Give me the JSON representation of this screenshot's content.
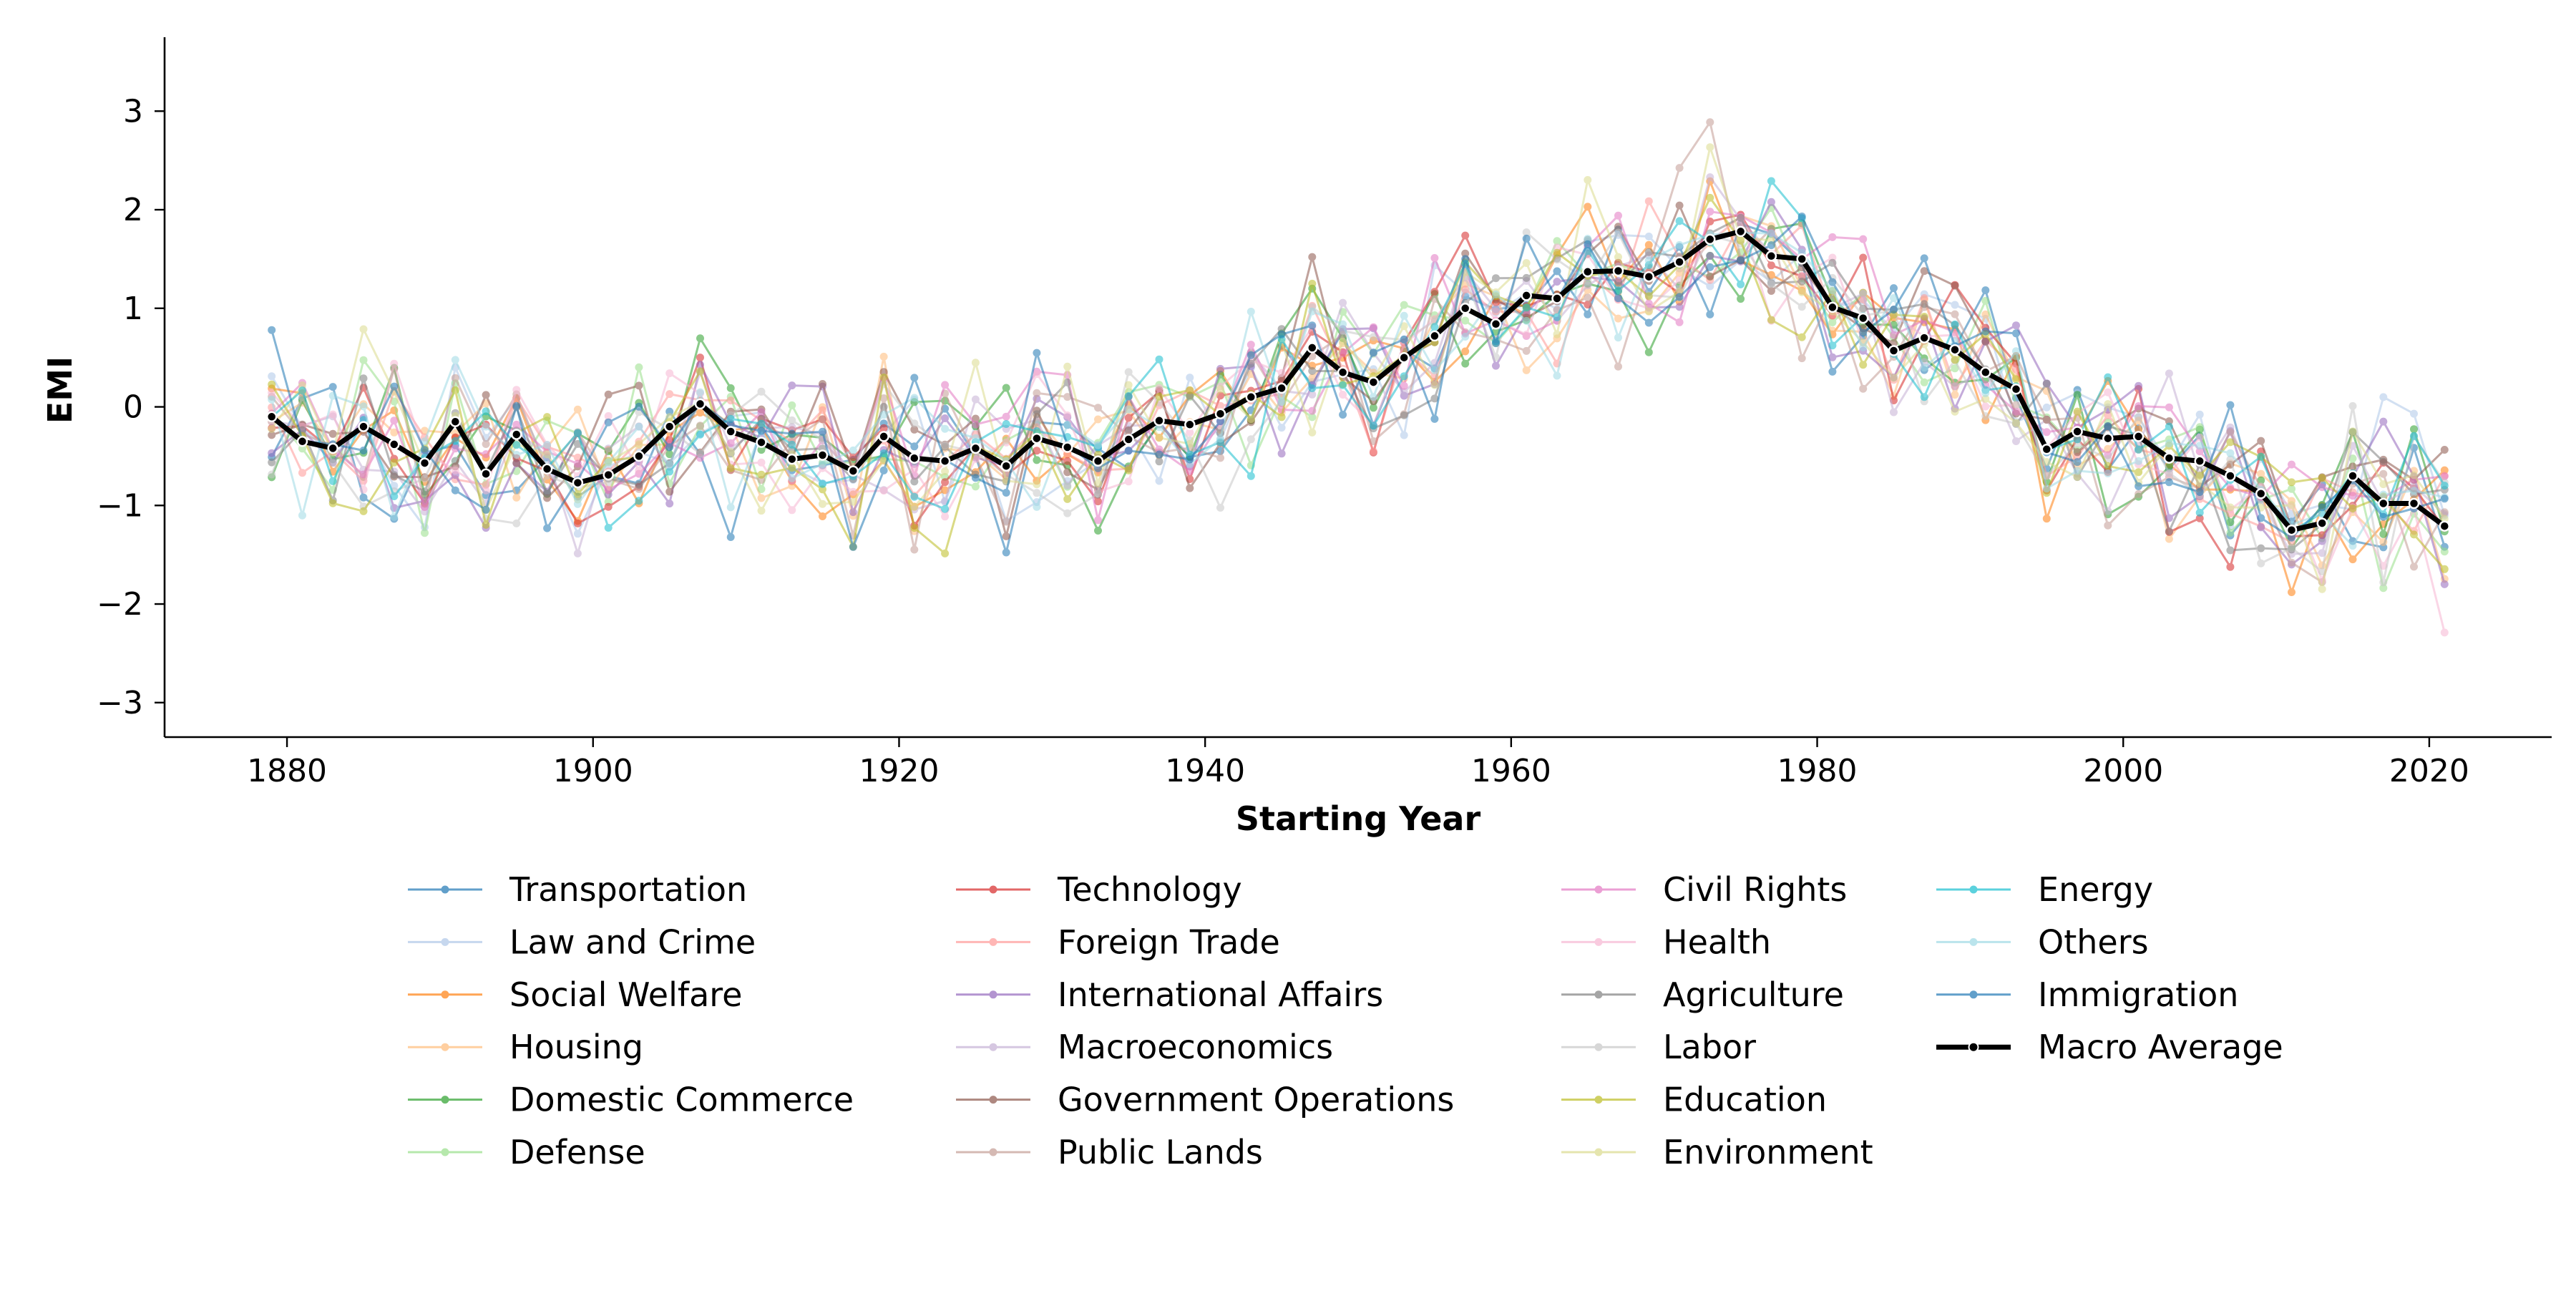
{
  "chart_data": {
    "type": "line",
    "title": "",
    "xlabel": "Starting Year",
    "ylabel": "EMI",
    "xlim": [
      1872,
      2028
    ],
    "ylim": [
      -3.35,
      3.75
    ],
    "xticks": [
      1880,
      1900,
      1920,
      1940,
      1960,
      1980,
      2000,
      2020
    ],
    "yticks": [
      3,
      2,
      1,
      0,
      -1,
      -2,
      -3
    ],
    "ytick_labels": [
      "3",
      "2",
      "1",
      "0",
      "−1",
      "−2",
      "−3"
    ],
    "grid": false,
    "legend_position": "bottom",
    "x": [
      1879,
      1881,
      1883,
      1885,
      1887,
      1889,
      1891,
      1893,
      1895,
      1897,
      1899,
      1901,
      1903,
      1905,
      1907,
      1909,
      1911,
      1913,
      1915,
      1917,
      1919,
      1921,
      1923,
      1925,
      1927,
      1929,
      1931,
      1933,
      1935,
      1937,
      1939,
      1941,
      1943,
      1945,
      1947,
      1949,
      1951,
      1953,
      1955,
      1957,
      1959,
      1961,
      1963,
      1965,
      1967,
      1969,
      1971,
      1973,
      1975,
      1977,
      1979,
      1981,
      1983,
      1985,
      1987,
      1989,
      1991,
      1993,
      1995,
      1997,
      1999,
      2001,
      2003,
      2005,
      2007,
      2009,
      2011,
      2013,
      2015,
      2017,
      2019,
      2021
    ],
    "macro_average": [
      -0.1,
      -0.35,
      -0.42,
      -0.2,
      -0.38,
      -0.57,
      -0.15,
      -0.68,
      -0.28,
      -0.63,
      -0.77,
      -0.69,
      -0.5,
      -0.2,
      0.03,
      -0.25,
      -0.36,
      -0.53,
      -0.49,
      -0.65,
      -0.3,
      -0.52,
      -0.55,
      -0.42,
      -0.6,
      -0.32,
      -0.41,
      -0.55,
      -0.33,
      -0.14,
      -0.18,
      -0.07,
      0.1,
      0.19,
      0.6,
      0.35,
      0.25,
      0.5,
      0.72,
      1.0,
      0.84,
      1.13,
      1.1,
      1.37,
      1.38,
      1.32,
      1.47,
      1.7,
      1.78,
      1.53,
      1.5,
      1.01,
      0.9,
      0.57,
      0.7,
      0.58,
      0.35,
      0.18,
      -0.43,
      -0.25,
      -0.32,
      -0.3,
      -0.52,
      -0.55,
      -0.7,
      -0.88,
      -1.25,
      -1.18,
      -0.7,
      -0.98,
      -0.98,
      -1.21
    ],
    "series": [
      {
        "name": "Transportation",
        "color": "#1f77b4"
      },
      {
        "name": "Law and Crime",
        "color": "#aec7e8"
      },
      {
        "name": "Social Welfare",
        "color": "#ff7f0e"
      },
      {
        "name": "Housing",
        "color": "#ffbb78"
      },
      {
        "name": "Domestic Commerce",
        "color": "#2ca02c"
      },
      {
        "name": "Defense",
        "color": "#98df8a"
      },
      {
        "name": "Technology",
        "color": "#d62728"
      },
      {
        "name": "Foreign Trade",
        "color": "#ff9896"
      },
      {
        "name": "International Affairs",
        "color": "#9467bd"
      },
      {
        "name": "Macroeconomics",
        "color": "#c5b0d5"
      },
      {
        "name": "Government Operations",
        "color": "#8c564b"
      },
      {
        "name": "Public Lands",
        "color": "#c49c94"
      },
      {
        "name": "Civil Rights",
        "color": "#e377c2"
      },
      {
        "name": "Health",
        "color": "#f7b6d2"
      },
      {
        "name": "Agriculture",
        "color": "#7f7f7f"
      },
      {
        "name": "Labor",
        "color": "#c7c7c7"
      },
      {
        "name": "Education",
        "color": "#bcbd22"
      },
      {
        "name": "Environment",
        "color": "#dbdb8d"
      },
      {
        "name": "Energy",
        "color": "#17becf"
      },
      {
        "name": "Others",
        "color": "#9edae5"
      },
      {
        "name": "Immigration",
        "color": "#1f77b4"
      },
      {
        "name": "Macro Average",
        "color": "#000000"
      }
    ]
  }
}
